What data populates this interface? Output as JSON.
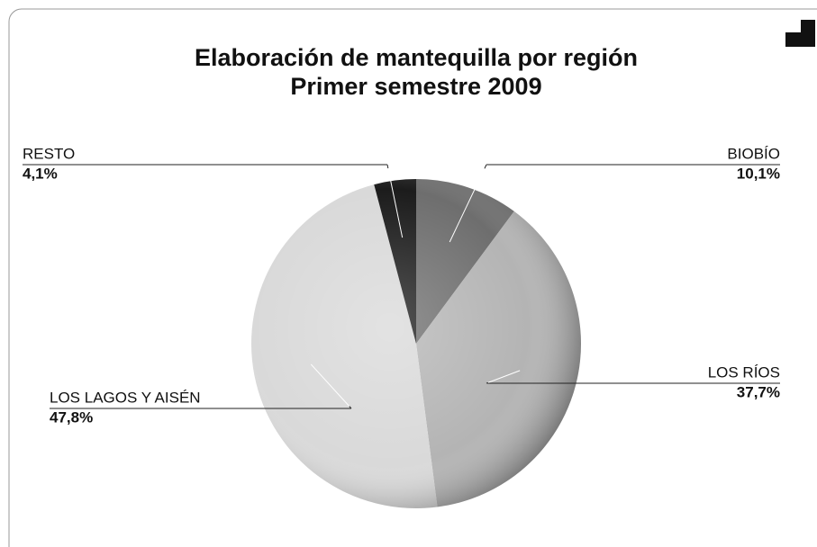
{
  "chart_data": {
    "type": "pie",
    "title": "Elaboración de mantequilla por región",
    "subtitle": "Primer semestre 2009",
    "categories": [
      "BIOBÍO",
      "LOS RÍOS",
      "LOS LAGOS Y AISÉN",
      "RESTO"
    ],
    "values": [
      10.1,
      37.7,
      47.8,
      4.1
    ],
    "value_labels": [
      "10,1%",
      "37,7%",
      "47,8%",
      "4,1%"
    ],
    "colors": [
      "#6e6e6e",
      "#b4b4b4",
      "#d9d9d9",
      "#1c1c1c"
    ]
  }
}
